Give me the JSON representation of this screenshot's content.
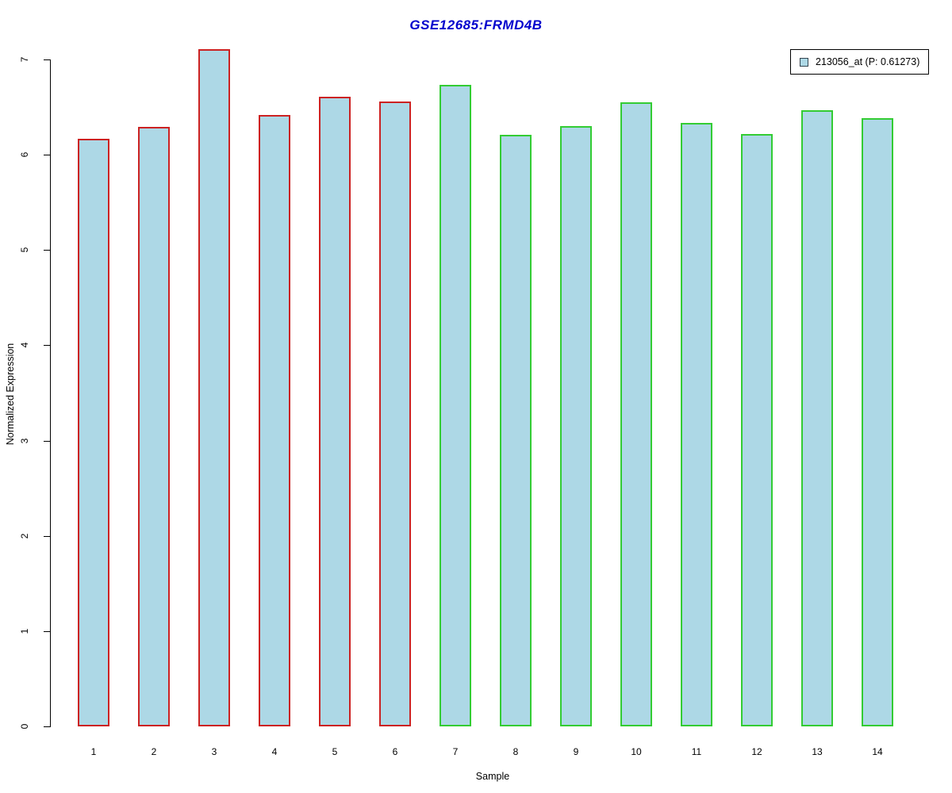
{
  "title": {
    "text": "GSE12685:FRMD4B",
    "color": "#0000cd"
  },
  "legend": {
    "label": "213056_at (P: 0.61273)",
    "swatch_fill": "#add8e6",
    "swatch_border": "#33434f",
    "position": "top-right"
  },
  "axes": {
    "y_label": "Normalized Expression",
    "x_label": "Sample",
    "y_ticks": [
      0,
      1,
      2,
      3,
      4,
      5,
      6,
      7
    ]
  },
  "chart_data": {
    "type": "bar",
    "title": "GSE12685:FRMD4B",
    "xlabel": "Sample",
    "ylabel": "Normalized Expression",
    "ylim": [
      0,
      7
    ],
    "grid": false,
    "legend_position": "top-right",
    "categories": [
      "1",
      "2",
      "3",
      "4",
      "5",
      "6",
      "7",
      "8",
      "9",
      "10",
      "11",
      "12",
      "13",
      "14"
    ],
    "series": [
      {
        "name": "213056_at (P: 0.61273)",
        "values": [
          6.17,
          6.29,
          7.11,
          6.42,
          6.61,
          6.56,
          6.73,
          6.21,
          6.3,
          6.55,
          6.33,
          6.22,
          6.47,
          6.38
        ]
      }
    ],
    "bar_fill": "#add8e6",
    "bar_border_colors": [
      "#cc2222",
      "#cc2222",
      "#cc2222",
      "#cc2222",
      "#cc2222",
      "#cc2222",
      "#33cc33",
      "#33cc33",
      "#33cc33",
      "#33cc33",
      "#33cc33",
      "#33cc33",
      "#33cc33",
      "#33cc33"
    ]
  }
}
